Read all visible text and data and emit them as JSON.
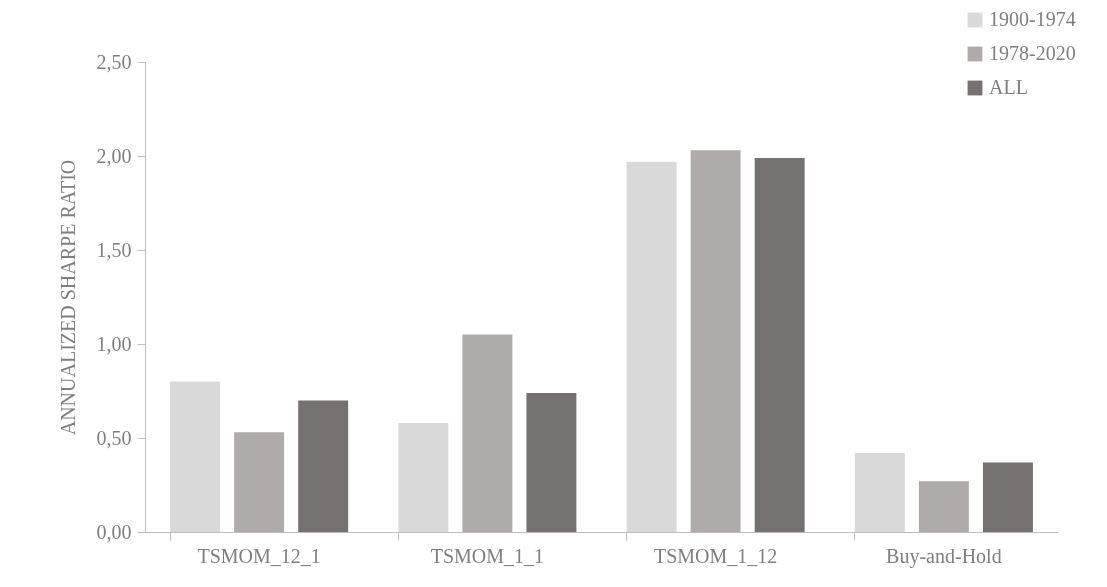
{
  "chart_data": {
    "type": "bar",
    "ylabel": "ANNUALIZED SHARPE RATIO",
    "categories": [
      "TSMOM_12_1",
      "TSMOM_1_1",
      "TSMOM_1_12",
      "Buy-and-Hold"
    ],
    "series": [
      {
        "name": "1900-1974",
        "color": "#d9d9d9",
        "values": [
          0.8,
          0.58,
          1.97,
          0.42
        ]
      },
      {
        "name": "1978-2020",
        "color": "#afabab",
        "values": [
          0.53,
          1.05,
          2.03,
          0.27
        ]
      },
      {
        "name": "ALL",
        "color": "#767171",
        "values": [
          0.7,
          0.74,
          1.99,
          0.37
        ]
      }
    ],
    "ylim": [
      0,
      2.5
    ],
    "yticks": [
      {
        "value": 0,
        "label": "0,00"
      },
      {
        "value": 0.5,
        "label": "0,50"
      },
      {
        "value": 1,
        "label": "1,00"
      },
      {
        "value": 1.5,
        "label": "1,50"
      },
      {
        "value": 2,
        "label": "2,00"
      },
      {
        "value": 2.5,
        "label": "2,50"
      }
    ],
    "grid": false,
    "legend": "top right"
  }
}
